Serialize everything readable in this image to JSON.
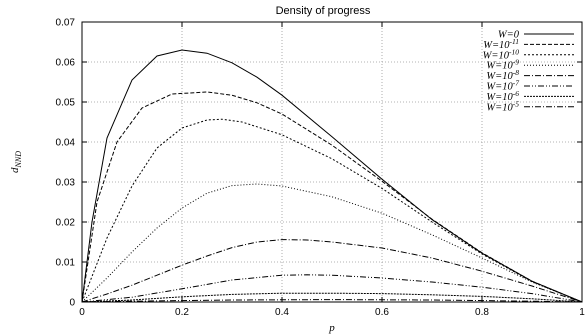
{
  "chart_data": {
    "type": "line",
    "title": "Density of progress",
    "xlabel": "p",
    "ylabel_base": "d",
    "ylabel_sub": "NND",
    "xlim": [
      0,
      1
    ],
    "ylim": [
      0,
      0.07
    ],
    "xticks": [
      0,
      0.2,
      0.4,
      0.6,
      0.8,
      1
    ],
    "xtick_labels": [
      "0",
      "0.2",
      "0.4",
      "0.6",
      "0.8",
      "1"
    ],
    "yticks": [
      0,
      0.01,
      0.02,
      0.03,
      0.04,
      0.05,
      0.06,
      0.07
    ],
    "ytick_labels": [
      "0",
      "0.01",
      "0.02",
      "0.03",
      "0.04",
      "0.05",
      "0.06",
      "0.07"
    ],
    "grid": true,
    "legend_position": "top-right",
    "series": [
      {
        "name": "W=0",
        "label_base": "W=0",
        "label_exp": "",
        "dash": "",
        "points": [
          [
            0,
            0
          ],
          [
            0.02,
            0.02
          ],
          [
            0.05,
            0.041
          ],
          [
            0.1,
            0.0555
          ],
          [
            0.15,
            0.0615
          ],
          [
            0.2,
            0.063
          ],
          [
            0.25,
            0.0622
          ],
          [
            0.3,
            0.0598
          ],
          [
            0.35,
            0.0562
          ],
          [
            0.4,
            0.0517
          ],
          [
            0.5,
            0.0413
          ],
          [
            0.6,
            0.0307
          ],
          [
            0.7,
            0.0206
          ],
          [
            0.8,
            0.0122
          ],
          [
            0.9,
            0.0052
          ],
          [
            1,
            0
          ]
        ]
      },
      {
        "name": "W=10^-11",
        "label_base": "W=10",
        "label_exp": "-11",
        "dash": "4 2",
        "points": [
          [
            0,
            0
          ],
          [
            0.03,
            0.025
          ],
          [
            0.07,
            0.04
          ],
          [
            0.12,
            0.0485
          ],
          [
            0.18,
            0.052
          ],
          [
            0.25,
            0.0525
          ],
          [
            0.3,
            0.0517
          ],
          [
            0.35,
            0.0498
          ],
          [
            0.4,
            0.047
          ],
          [
            0.5,
            0.0392
          ],
          [
            0.6,
            0.0302
          ],
          [
            0.7,
            0.0207
          ],
          [
            0.8,
            0.0123
          ],
          [
            0.9,
            0.0052
          ],
          [
            1,
            0
          ]
        ]
      },
      {
        "name": "W=10^-10",
        "label_base": "W=10",
        "label_exp": "-10",
        "dash": "2 2",
        "points": [
          [
            0,
            0
          ],
          [
            0.05,
            0.016
          ],
          [
            0.1,
            0.029
          ],
          [
            0.15,
            0.0385
          ],
          [
            0.2,
            0.0435
          ],
          [
            0.25,
            0.0455
          ],
          [
            0.28,
            0.0457
          ],
          [
            0.32,
            0.045
          ],
          [
            0.4,
            0.0418
          ],
          [
            0.5,
            0.0358
          ],
          [
            0.6,
            0.0284
          ],
          [
            0.7,
            0.02
          ],
          [
            0.8,
            0.012
          ],
          [
            0.9,
            0.0051
          ],
          [
            1,
            0
          ]
        ]
      },
      {
        "name": "W=10^-9",
        "label_base": "W=10",
        "label_exp": "-9",
        "dash": "1 2",
        "points": [
          [
            0,
            0
          ],
          [
            0.05,
            0.006
          ],
          [
            0.1,
            0.0125
          ],
          [
            0.15,
            0.0185
          ],
          [
            0.2,
            0.0235
          ],
          [
            0.25,
            0.0272
          ],
          [
            0.3,
            0.0291
          ],
          [
            0.35,
            0.0295
          ],
          [
            0.4,
            0.029
          ],
          [
            0.5,
            0.0263
          ],
          [
            0.6,
            0.0222
          ],
          [
            0.7,
            0.0168
          ],
          [
            0.8,
            0.011
          ],
          [
            0.9,
            0.005
          ],
          [
            1,
            0
          ]
        ]
      },
      {
        "name": "W=10^-8",
        "label_base": "W=10",
        "label_exp": "-8",
        "dash": "6 2 1 2",
        "points": [
          [
            0,
            0
          ],
          [
            0.05,
            0.002
          ],
          [
            0.1,
            0.0042
          ],
          [
            0.15,
            0.0067
          ],
          [
            0.2,
            0.0092
          ],
          [
            0.25,
            0.0115
          ],
          [
            0.3,
            0.0136
          ],
          [
            0.35,
            0.015
          ],
          [
            0.4,
            0.0156
          ],
          [
            0.45,
            0.0155
          ],
          [
            0.5,
            0.015
          ],
          [
            0.6,
            0.0135
          ],
          [
            0.7,
            0.011
          ],
          [
            0.8,
            0.0077
          ],
          [
            0.9,
            0.004
          ],
          [
            1,
            0
          ]
        ]
      },
      {
        "name": "W=10^-7",
        "label_base": "W=10",
        "label_exp": "-7",
        "dash": "6 2 1 2 1 2",
        "points": [
          [
            0,
            0
          ],
          [
            0.1,
            0.0012
          ],
          [
            0.2,
            0.0033
          ],
          [
            0.3,
            0.0055
          ],
          [
            0.4,
            0.0067
          ],
          [
            0.45,
            0.0068
          ],
          [
            0.5,
            0.0067
          ],
          [
            0.6,
            0.006
          ],
          [
            0.7,
            0.005
          ],
          [
            0.8,
            0.0037
          ],
          [
            0.9,
            0.0021
          ],
          [
            1,
            0
          ]
        ]
      },
      {
        "name": "W=10^-6",
        "label_base": "W=10",
        "label_exp": "-6",
        "dash": "2 1",
        "points": [
          [
            0,
            0
          ],
          [
            0.1,
            0.0005
          ],
          [
            0.2,
            0.0013
          ],
          [
            0.3,
            0.0019
          ],
          [
            0.4,
            0.0022
          ],
          [
            0.5,
            0.0022
          ],
          [
            0.6,
            0.0021
          ],
          [
            0.7,
            0.0018
          ],
          [
            0.8,
            0.0014
          ],
          [
            0.9,
            0.0008
          ],
          [
            1,
            0
          ]
        ]
      },
      {
        "name": "W=10^-5",
        "label_base": "W=10",
        "label_exp": "-5",
        "dash": "6 2 1 2",
        "points": [
          [
            0,
            0
          ],
          [
            0.1,
            0.0002
          ],
          [
            0.3,
            0.0005
          ],
          [
            0.5,
            0.0006
          ],
          [
            0.7,
            0.0005
          ],
          [
            0.9,
            0.0002
          ],
          [
            1,
            0
          ]
        ]
      }
    ]
  }
}
